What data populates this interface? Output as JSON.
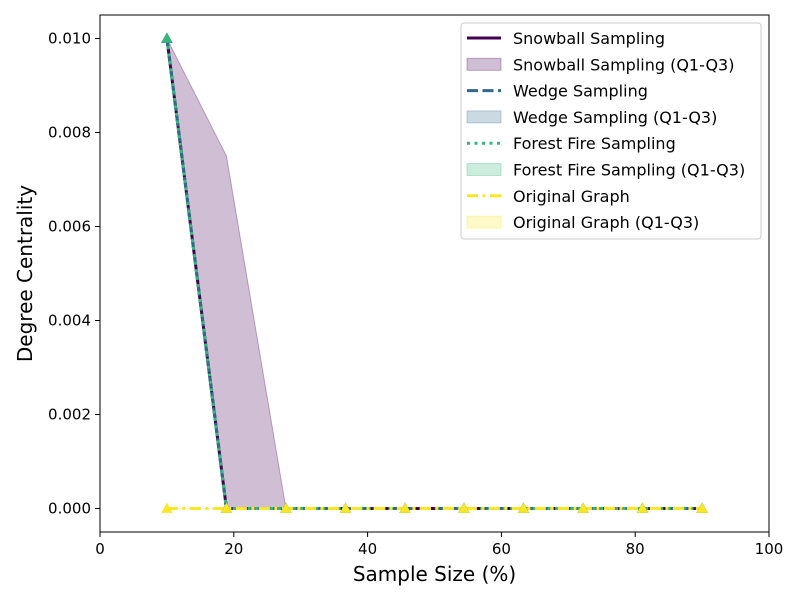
{
  "colors": {
    "snowball": "#440154",
    "snowball_fill": "#440154",
    "wedge": "#31688e",
    "wedge_fill": "#31688e",
    "forest": "#35b779",
    "forest_fill": "#35b779",
    "original": "#fde725",
    "original_fill": "#fde725"
  },
  "chart_data": {
    "type": "line",
    "title": "",
    "xlabel": "Sample Size (%)",
    "ylabel": "Degree Centrality",
    "xlim": [
      0,
      100
    ],
    "ylim": [
      -0.0005,
      0.0105
    ],
    "xticks": [
      0,
      20,
      40,
      60,
      80,
      100
    ],
    "xtick_labels": [
      "0",
      "20",
      "40",
      "60",
      "80",
      "100"
    ],
    "yticks": [
      0.0,
      0.002,
      0.004,
      0.006,
      0.008,
      0.01
    ],
    "ytick_labels": [
      "0.000",
      "0.002",
      "0.004",
      "0.006",
      "0.008",
      "0.010"
    ],
    "grid": false,
    "legend_position": "top-right",
    "x": [
      10,
      18.9,
      27.8,
      36.7,
      45.6,
      54.4,
      63.3,
      72.2,
      81.1,
      90
    ],
    "series": [
      {
        "key": "snowball",
        "name": "Snowball Sampling",
        "band_name": "Snowball Sampling (Q1-Q3)",
        "style": "solid",
        "values": [
          0.01,
          0,
          0,
          0,
          0,
          0,
          0,
          0,
          0,
          0
        ],
        "q1": [
          0.01,
          0,
          0,
          0,
          0,
          0,
          0,
          0,
          0,
          0
        ],
        "q3": [
          0.01,
          0.0075,
          0,
          0,
          0,
          0,
          0,
          0,
          0,
          0
        ]
      },
      {
        "key": "wedge",
        "name": "Wedge Sampling",
        "band_name": "Wedge Sampling (Q1-Q3)",
        "style": "dashed",
        "values": [
          0.01,
          0,
          0,
          0,
          0,
          0,
          0,
          0,
          0,
          0
        ],
        "q1": [
          0.01,
          0,
          0,
          0,
          0,
          0,
          0,
          0,
          0,
          0
        ],
        "q3": [
          0.01,
          0,
          0,
          0,
          0,
          0,
          0,
          0,
          0,
          0
        ]
      },
      {
        "key": "forest",
        "name": "Forest Fire Sampling",
        "band_name": "Forest Fire Sampling (Q1-Q3)",
        "style": "dotted",
        "values": [
          0.01,
          0,
          0,
          0,
          0,
          0,
          0,
          0,
          0,
          0
        ],
        "q1": [
          0.01,
          0,
          0,
          0,
          0,
          0,
          0,
          0,
          0,
          0
        ],
        "q3": [
          0.01,
          0,
          0,
          0,
          0,
          0,
          0,
          0,
          0,
          0
        ]
      },
      {
        "key": "original",
        "name": "Original Graph",
        "band_name": "Original Graph (Q1-Q3)",
        "style": "dashdot",
        "values": [
          0,
          0,
          0,
          0,
          0,
          0,
          0,
          0,
          0,
          0
        ],
        "q1": [
          0,
          0,
          0,
          0,
          0,
          0,
          0,
          0,
          0,
          0
        ],
        "q3": [
          0,
          0,
          0,
          0,
          0,
          0,
          0,
          0,
          0,
          0
        ]
      }
    ]
  }
}
